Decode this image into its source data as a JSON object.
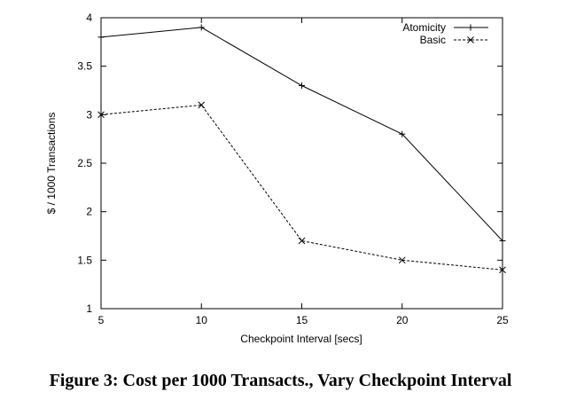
{
  "caption": "Figure 3: Cost per 1000 Transacts., Vary Checkpoint Interval",
  "chart_data": {
    "type": "line",
    "title": "",
    "xlabel": "Checkpoint Interval [secs]",
    "ylabel": "$ / 1000 Transactions",
    "x": [
      5,
      10,
      15,
      20,
      25
    ],
    "xlim": [
      5,
      25
    ],
    "ylim": [
      1,
      4
    ],
    "xticks": [
      "5",
      "10",
      "15",
      "20",
      "25"
    ],
    "yticks": [
      "1",
      "1.5",
      "2",
      "2.5",
      "3",
      "3.5",
      "4"
    ],
    "grid": false,
    "legend_position": "top-right",
    "series": [
      {
        "name": "Atomicity",
        "values": [
          3.8,
          3.9,
          3.3,
          2.8,
          1.7
        ],
        "line_style": "solid",
        "marker": "+"
      },
      {
        "name": "Basic",
        "values": [
          3.0,
          3.1,
          1.7,
          1.5,
          1.4
        ],
        "line_style": "dashed",
        "marker": "x"
      }
    ]
  }
}
